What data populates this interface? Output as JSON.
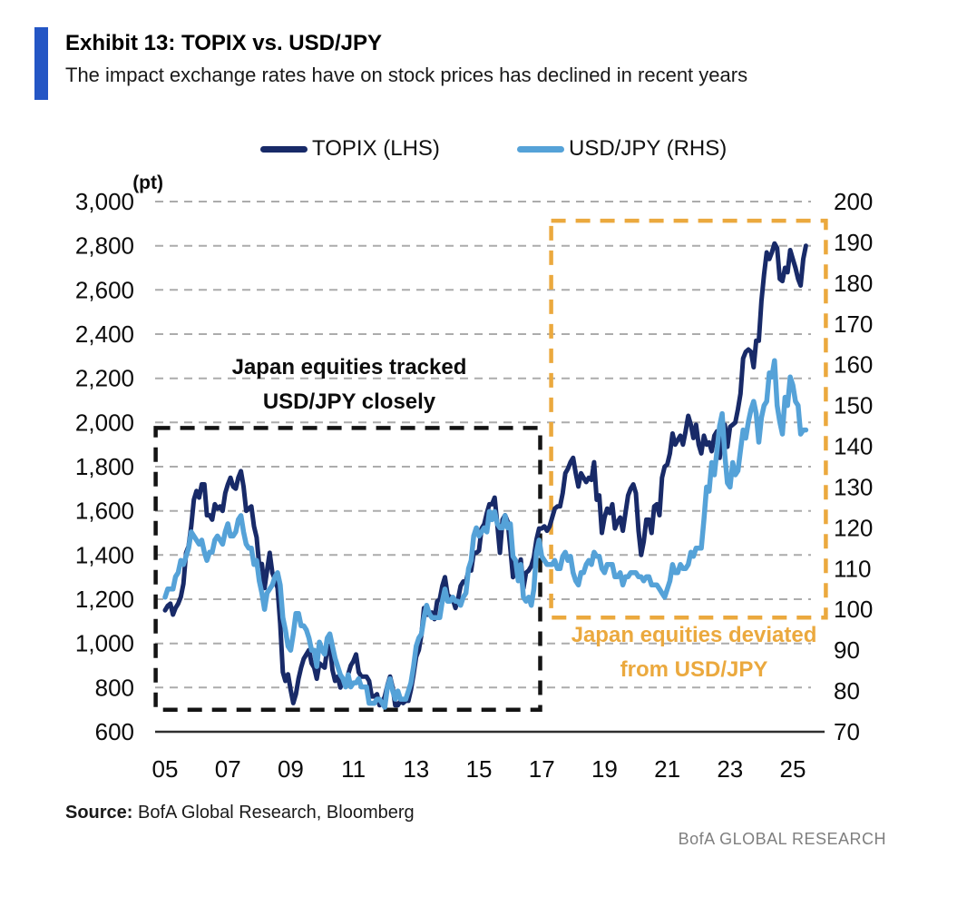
{
  "header": {
    "title": "Exhibit 13: TOPIX vs. USD/JPY",
    "subtitle": "The impact exchange rates have on stock prices has declined in recent years",
    "accent_color": "#2456C5"
  },
  "legend": [
    {
      "label": "TOPIX (LHS)",
      "color": "#182A68"
    },
    {
      "label": "USD/JPY (RHS)",
      "color": "#55A2D8"
    }
  ],
  "source": {
    "label": "Source:",
    "text": " BofA Global Research, Bloomberg"
  },
  "footer": {
    "text": "BofA GLOBAL RESEARCH"
  },
  "chart_data": {
    "type": "line",
    "title": "TOPIX vs. USD/JPY",
    "x_start_year": 2005,
    "x_step_months": 1,
    "x_end_year": 2025.42,
    "grid": "dashed-horizontal",
    "legend_position": "top-center",
    "left_axis": {
      "label": "(pt)",
      "min": 600,
      "max": 3000,
      "ticks": [
        3000,
        2800,
        2600,
        2400,
        2200,
        2000,
        1800,
        1600,
        1400,
        1200,
        1000,
        800,
        600
      ],
      "tick_labels": [
        "3,000",
        "2,800",
        "2,600",
        "2,400",
        "2,200",
        "2,000",
        "1,800",
        "1,600",
        "1,400",
        "1,200",
        "1,000",
        "800",
        "600"
      ]
    },
    "right_axis": {
      "min": 70,
      "max": 200,
      "ticks": [
        200,
        190,
        180,
        170,
        160,
        150,
        140,
        130,
        120,
        110,
        100,
        90,
        80,
        70
      ],
      "tick_labels": [
        "200",
        "190",
        "180",
        "170",
        "160",
        "150",
        "140",
        "130",
        "120",
        "110",
        "100",
        "90",
        "80",
        "70"
      ]
    },
    "x_axis": {
      "tick_years": [
        2005,
        2007,
        2009,
        2011,
        2013,
        2015,
        2017,
        2019,
        2021,
        2023,
        2025
      ],
      "tick_labels": [
        "05",
        "07",
        "09",
        "11",
        "13",
        "15",
        "17",
        "19",
        "21",
        "23",
        "25"
      ]
    },
    "series": [
      {
        "name": "TOPIX (LHS)",
        "axis": "left",
        "color": "#182A68",
        "values": [
          1150,
          1170,
          1180,
          1130,
          1160,
          1180,
          1210,
          1270,
          1410,
          1440,
          1530,
          1650,
          1690,
          1660,
          1720,
          1720,
          1580,
          1580,
          1560,
          1630,
          1610,
          1620,
          1600,
          1680,
          1720,
          1750,
          1710,
          1700,
          1750,
          1780,
          1710,
          1600,
          1610,
          1620,
          1530,
          1480,
          1350,
          1360,
          1250,
          1330,
          1410,
          1320,
          1290,
          1250,
          1090,
          870,
          830,
          860,
          790,
          730,
          770,
          840,
          890,
          930,
          950,
          970,
          910,
          890,
          840,
          910,
          900,
          890,
          980,
          990,
          880,
          830,
          850,
          800,
          830,
          810,
          860,
          900,
          920,
          950,
          870,
          850,
          850,
          850,
          830,
          760,
          760,
          770,
          720,
          730,
          760,
          810,
          850,
          800,
          720,
          720,
          740,
          730,
          740,
          740,
          790,
          860,
          940,
          970,
          1040,
          1160,
          1130,
          1130,
          1140,
          1110,
          1190,
          1200,
          1260,
          1300,
          1220,
          1210,
          1200,
          1160,
          1200,
          1260,
          1280,
          1280,
          1330,
          1330,
          1410,
          1410,
          1420,
          1520,
          1540,
          1590,
          1630,
          1630,
          1660,
          1540,
          1410,
          1560,
          1580,
          1550,
          1430,
          1300,
          1350,
          1340,
          1380,
          1250,
          1320,
          1330,
          1350,
          1390,
          1470,
          1520,
          1520,
          1530,
          1510,
          1530,
          1570,
          1610,
          1620,
          1620,
          1680,
          1770,
          1790,
          1820,
          1840,
          1770,
          1710,
          1770,
          1750,
          1730,
          1750,
          1740,
          1820,
          1650,
          1670,
          1500,
          1570,
          1610,
          1590,
          1630,
          1520,
          1550,
          1570,
          1510,
          1590,
          1670,
          1700,
          1720,
          1680,
          1510,
          1400,
          1460,
          1560,
          1560,
          1500,
          1620,
          1630,
          1580,
          1750,
          1800,
          1810,
          1860,
          1950,
          1900,
          1920,
          1940,
          1900,
          1960,
          2030,
          1990,
          1930,
          1990,
          1900,
          1860,
          1940,
          1900,
          1910,
          1870,
          1940,
          1960,
          1840,
          1930,
          1990,
          1890,
          1980,
          1990,
          2000,
          2060,
          2130,
          2290,
          2320,
          2330,
          2320,
          2250,
          2370,
          2370,
          2550,
          2670,
          2770,
          2740,
          2770,
          2810,
          2790,
          2650,
          2640,
          2700,
          2680,
          2780,
          2740,
          2700,
          2650,
          2620,
          2740,
          2800
        ]
      },
      {
        "name": "USD/JPY (RHS)",
        "axis": "right",
        "color": "#55A2D8",
        "values": [
          103,
          105,
          105,
          105,
          108,
          109,
          112,
          111,
          113,
          115,
          119,
          118,
          117,
          116,
          117,
          114,
          112,
          114,
          114,
          117,
          118,
          117,
          116,
          119,
          121,
          118,
          118,
          119,
          122,
          123,
          119,
          116,
          115,
          115,
          111,
          112,
          107,
          104,
          100,
          104,
          105,
          106,
          108,
          109,
          106,
          98,
          95,
          91,
          90,
          94,
          99,
          99,
          96,
          96,
          95,
          93,
          90,
          90,
          86,
          92,
          90,
          89,
          93,
          94,
          91,
          88,
          86,
          84,
          83,
          81,
          84,
          81,
          82,
          82,
          83,
          81,
          81,
          81,
          77,
          77,
          77,
          78,
          78,
          77,
          76,
          81,
          83,
          80,
          78,
          80,
          78,
          78,
          78,
          80,
          82,
          86,
          91,
          93,
          94,
          98,
          101,
          99,
          98,
          98,
          98,
          98,
          102,
          105,
          102,
          102,
          103,
          102,
          102,
          101,
          103,
          104,
          110,
          112,
          118,
          120,
          118,
          119,
          120,
          119,
          124,
          122,
          124,
          121,
          120,
          120,
          123,
          120,
          121,
          113,
          112,
          107,
          111,
          103,
          102,
          103,
          101,
          105,
          114,
          117,
          113,
          112,
          111,
          111,
          111,
          112,
          110,
          110,
          113,
          114,
          112,
          113,
          109,
          107,
          106,
          109,
          109,
          111,
          112,
          111,
          114,
          113,
          113,
          110,
          109,
          111,
          111,
          111,
          108,
          108,
          109,
          106,
          108,
          108,
          109,
          109,
          109,
          108,
          108,
          107,
          108,
          108,
          106,
          106,
          106,
          105,
          104,
          103,
          105,
          107,
          111,
          109,
          109,
          111,
          110,
          110,
          111,
          114,
          113,
          115,
          115,
          115,
          122,
          130,
          129,
          136,
          133,
          139,
          145,
          148,
          138,
          131,
          130,
          136,
          133,
          134,
          139,
          144,
          142,
          146,
          149,
          151,
          148,
          141,
          147,
          150,
          151,
          158,
          157,
          161,
          150,
          146,
          143,
          152,
          150,
          157,
          155,
          151,
          150,
          143,
          144,
          144
        ]
      }
    ],
    "boxes": [
      {
        "name": "tracked-period-box",
        "color": "#141414",
        "scale": "left",
        "year_from": 2004.7,
        "year_to": 2016.95,
        "value_from": 1975,
        "value_to": 700
      },
      {
        "name": "deviated-period-box",
        "color": "#EBA93E",
        "scale": "right",
        "year_from": 2017.3,
        "year_to": 2026.05,
        "value_from": 195.3,
        "value_to": 98
      }
    ],
    "annotations": [
      {
        "line1": "Japan equities tracked",
        "line2": "USD/JPY closely",
        "color": "#0d0d0d"
      },
      {
        "line1": "Japan equities deviated",
        "line2": "from USD/JPY",
        "color": "#EBA93E"
      }
    ],
    "colors": {
      "gridline": "#ACACAC",
      "axis_line": "#2f2f2f",
      "tick_text": "#0c0c0c"
    }
  }
}
